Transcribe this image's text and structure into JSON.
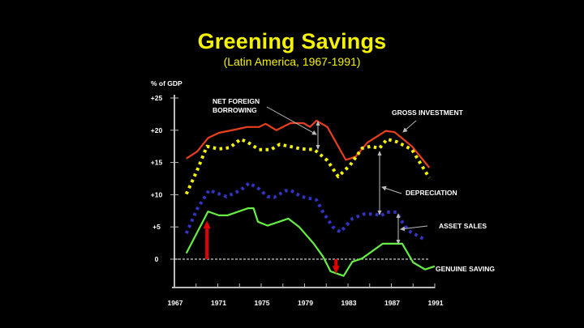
{
  "title": "Greening Savings",
  "subtitle": "(Latin America, 1967-1991)",
  "chart_data": {
    "type": "line",
    "title": "Greening Savings",
    "subtitle": "(Latin America, 1967-1991)",
    "ylabel": "% of GDP",
    "xlabel": "",
    "xlim": [
      1967,
      1991
    ],
    "ylim": [
      -4.5,
      25
    ],
    "x_ticks": [
      "1967",
      "1971",
      "1975",
      "1979",
      "1983",
      "1987",
      "1991"
    ],
    "y_ticks": [
      {
        "value": 25,
        "label": "+25"
      },
      {
        "value": 20,
        "label": "+20"
      },
      {
        "value": 15,
        "label": "+15"
      },
      {
        "value": 10,
        "label": "+10"
      },
      {
        "value": 5,
        "label": "+5"
      },
      {
        "value": 0,
        "label": "0"
      }
    ],
    "zero_line": "dashed",
    "grid": false,
    "series": [
      {
        "name": "Gross Investment",
        "color": "#e8401c",
        "style": "solid",
        "x": [
          1968.1,
          1969.1,
          1970.1,
          1971.1,
          1972.6,
          1973.7,
          1974.8,
          1975.4,
          1976.4,
          1977.7,
          1978.9,
          1979.5,
          1980.1,
          1981.1,
          1982.8,
          1983.7,
          1984.8,
          1986.5,
          1987.3,
          1988.9,
          1990.5
        ],
        "y": [
          15.6,
          16.7,
          18.8,
          19.6,
          20.1,
          20.5,
          20.5,
          21.0,
          20.0,
          21.1,
          21.1,
          20.5,
          21.5,
          20.5,
          15.4,
          15.9,
          18.1,
          19.9,
          19.7,
          17.5,
          14.2
        ]
      },
      {
        "name": "Net Foreign Borrowing (gross investment less this)",
        "color": "#f5f200",
        "style": "dotted",
        "x": [
          1968.1,
          1969.1,
          1970.0,
          1971.1,
          1972.1,
          1973.1,
          1973.8,
          1974.8,
          1975.9,
          1976.7,
          1977.6,
          1978.7,
          1979.9,
          1981.1,
          1982.1,
          1983.2,
          1984.3,
          1985.1,
          1985.9,
          1986.6,
          1987.5,
          1988.9,
          1990.5
        ],
        "y": [
          10.1,
          13.8,
          17.5,
          17.1,
          17.3,
          18.6,
          18.1,
          17.0,
          17.0,
          17.8,
          17.5,
          17.1,
          17.0,
          15.3,
          12.8,
          14.6,
          17.2,
          17.5,
          17.2,
          18.6,
          18.2,
          17.0,
          12.6
        ]
      },
      {
        "name": "Net Saving after Depreciation",
        "color": "#3434c4",
        "style": "dotted",
        "x": [
          1968.1,
          1969.1,
          1970.2,
          1971.8,
          1973.1,
          1973.9,
          1974.8,
          1975.6,
          1976.2,
          1977.2,
          1977.7,
          1978.7,
          1980.1,
          1980.7,
          1981.6,
          1982.3,
          1983.4,
          1984.5,
          1985.5,
          1986.0,
          1986.6,
          1987.5,
          1987.9,
          1988.6,
          1990.0
        ],
        "y": [
          4.0,
          7.8,
          10.7,
          9.7,
          10.7,
          11.8,
          10.9,
          9.7,
          9.6,
          10.6,
          10.7,
          9.7,
          9.2,
          7.3,
          5.0,
          4.2,
          6.3,
          7.0,
          7.0,
          6.7,
          7.3,
          7.3,
          6.0,
          4.4,
          3.1
        ]
      },
      {
        "name": "Genuine Saving",
        "color": "#66ee44",
        "style": "solid",
        "x": [
          1968.1,
          1970.1,
          1971.1,
          1971.9,
          1973.8,
          1974.3,
          1974.7,
          1975.6,
          1977.5,
          1978.5,
          1979.8,
          1980.7,
          1981.4,
          1982.6,
          1983.4,
          1984.3,
          1986.2,
          1988.0,
          1989.0,
          1990.1,
          1991.0
        ],
        "y": [
          0.9,
          7.4,
          6.8,
          6.8,
          7.9,
          7.9,
          5.8,
          5.2,
          6.3,
          5.0,
          2.5,
          0.4,
          -1.9,
          -2.6,
          -0.4,
          0.1,
          2.4,
          2.4,
          -0.5,
          -1.6,
          -1.1
        ]
      }
    ],
    "annotations": [
      {
        "text_lines": [
          "NET FOREIGN",
          "BORROWING"
        ],
        "points_to_year": 1980.7,
        "between": [
          "Gross Investment",
          "Net Foreign Borrowing"
        ]
      },
      {
        "text_lines": [
          "GROSS INVESTMENT"
        ],
        "points_to_year": 1987.3
      },
      {
        "text_lines": [
          "DEPRECIATION"
        ],
        "points_to_year": 1986.0,
        "between": [
          "Net Foreign Borrowing",
          "Net Saving after Depreciation"
        ]
      },
      {
        "text_lines": [
          "ASSET SALES"
        ],
        "points_to_year": 1987.6,
        "between": [
          "Net Saving after Depreciation",
          "Genuine Saving"
        ]
      },
      {
        "text_lines": [
          "GENUINE SAVING"
        ],
        "label_for": "Genuine Saving"
      }
    ],
    "highlight_arrows": [
      {
        "year": 1970.0,
        "direction": "up",
        "from": 0,
        "to": 6.0,
        "color": "#e00000"
      },
      {
        "year": 1981.9,
        "direction": "down",
        "from": 0,
        "to": -2.3,
        "color": "#e00000"
      }
    ],
    "legend": "none (inline labels)"
  }
}
